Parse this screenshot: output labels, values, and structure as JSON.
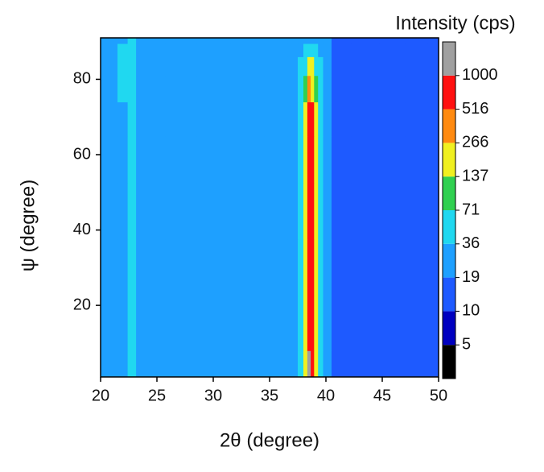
{
  "chart_data": {
    "type": "contour",
    "colorbar_title": "Intensity (cps)",
    "x_label": "2θ (degree)",
    "y_label": "ψ (degree)",
    "xlim": [
      20,
      50
    ],
    "ylim": [
      1,
      91
    ],
    "xticks": [
      20,
      25,
      30,
      35,
      40,
      45,
      50
    ],
    "yticks": [
      20,
      40,
      60,
      80
    ],
    "levels": [
      5,
      10,
      19,
      36,
      71,
      137,
      266,
      516,
      1000
    ],
    "colors": [
      "#000000",
      "#0000c0",
      "#1e5aff",
      "#1ea0ff",
      "#20d8f0",
      "#30d050",
      "#f0f020",
      "#ff8a10",
      "#ff1010",
      "#a0a0a0"
    ],
    "x": [
      20,
      21,
      22,
      22.8,
      23.5,
      24.5,
      27,
      30,
      33,
      36,
      37.2,
      37.8,
      38.2,
      38.5,
      38.8,
      39.1,
      39.5,
      40,
      41,
      43.5,
      46,
      48,
      50
    ],
    "y": [
      1,
      15,
      30,
      45,
      60,
      70,
      78,
      84,
      88,
      91
    ],
    "z": [
      [
        24,
        28,
        34,
        42,
        32,
        26,
        25,
        24,
        22,
        24,
        30,
        45,
        150,
        1100,
        700,
        160,
        48,
        20,
        15,
        14,
        14,
        15,
        16
      ],
      [
        24,
        28,
        34,
        42,
        32,
        26,
        25,
        24,
        22,
        24,
        30,
        45,
        150,
        700,
        600,
        160,
        48,
        20,
        15,
        14,
        14,
        15,
        16
      ],
      [
        24,
        28,
        34,
        42,
        32,
        26,
        25,
        24,
        22,
        24,
        30,
        45,
        150,
        700,
        600,
        160,
        48,
        20,
        15,
        14,
        14,
        15,
        16
      ],
      [
        24,
        28,
        34,
        42,
        32,
        26,
        25,
        24,
        22,
        24,
        30,
        45,
        150,
        700,
        600,
        160,
        48,
        20,
        15,
        14,
        14,
        15,
        16
      ],
      [
        24,
        28,
        34,
        42,
        32,
        26,
        25,
        24,
        22,
        24,
        30,
        45,
        150,
        800,
        600,
        160,
        48,
        20,
        15,
        14,
        14,
        15,
        16
      ],
      [
        24,
        28,
        34,
        45,
        32,
        26,
        25,
        24,
        22,
        24,
        30,
        45,
        140,
        650,
        550,
        150,
        45,
        20,
        15,
        14,
        14,
        15,
        16
      ],
      [
        24,
        28,
        36,
        50,
        34,
        26,
        25,
        24,
        22,
        24,
        30,
        40,
        100,
        300,
        250,
        90,
        40,
        20,
        15,
        14,
        14,
        15,
        16
      ],
      [
        24,
        28,
        38,
        55,
        34,
        26,
        25,
        24,
        22,
        24,
        28,
        36,
        60,
        180,
        150,
        55,
        36,
        20,
        15,
        14,
        14,
        15,
        16
      ],
      [
        24,
        28,
        36,
        48,
        32,
        26,
        25,
        24,
        22,
        24,
        26,
        35,
        40,
        60,
        50,
        40,
        30,
        20,
        15,
        14,
        14,
        15,
        16
      ],
      [
        24,
        28,
        34,
        42,
        30,
        26,
        25,
        24,
        22,
        24,
        26,
        28,
        30,
        32,
        30,
        28,
        26,
        20,
        15,
        14,
        14,
        15,
        16
      ]
    ]
  }
}
